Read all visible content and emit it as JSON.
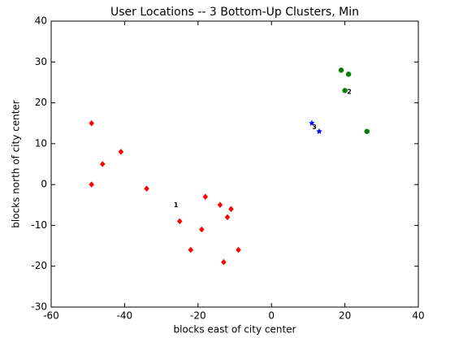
{
  "chart_data": {
    "type": "scatter",
    "title": "User Locations -- 3 Bottom-Up Clusters, Min",
    "x_label": "blocks east of city center",
    "y_label": "blocks north of city center",
    "xlim": [
      -60,
      40
    ],
    "xticks": [
      -60,
      -40,
      -20,
      0,
      20,
      40
    ],
    "ylim": [
      -30,
      40
    ],
    "yticks": [
      -30,
      -20,
      -10,
      0,
      10,
      20,
      30,
      40
    ],
    "series": [
      {
        "color": "#ff0000",
        "marker": "diamond",
        "x": [
          -49,
          -49,
          -46,
          -41,
          -34,
          -25,
          -22,
          -19,
          -18,
          -14,
          -12,
          -11,
          -13,
          -9
        ],
        "y": [
          15,
          0,
          5,
          8,
          -1,
          -9,
          -16,
          -11,
          -3,
          -5,
          -8,
          -6,
          -19,
          -16
        ]
      },
      {
        "color": "#008000",
        "marker": "circle",
        "x": [
          19,
          21,
          20,
          26
        ],
        "y": [
          28,
          27,
          23,
          13
        ]
      },
      {
        "color": "#0000ff",
        "marker": "star",
        "x": [
          11,
          13
        ],
        "y": [
          15,
          13
        ]
      }
    ],
    "annotations": [
      {
        "text": "1",
        "x": -26,
        "y": -5
      },
      {
        "text": "2",
        "x": 21.2,
        "y": 22.7
      },
      {
        "text": "3",
        "x": 11.7,
        "y": 14
      }
    ]
  }
}
